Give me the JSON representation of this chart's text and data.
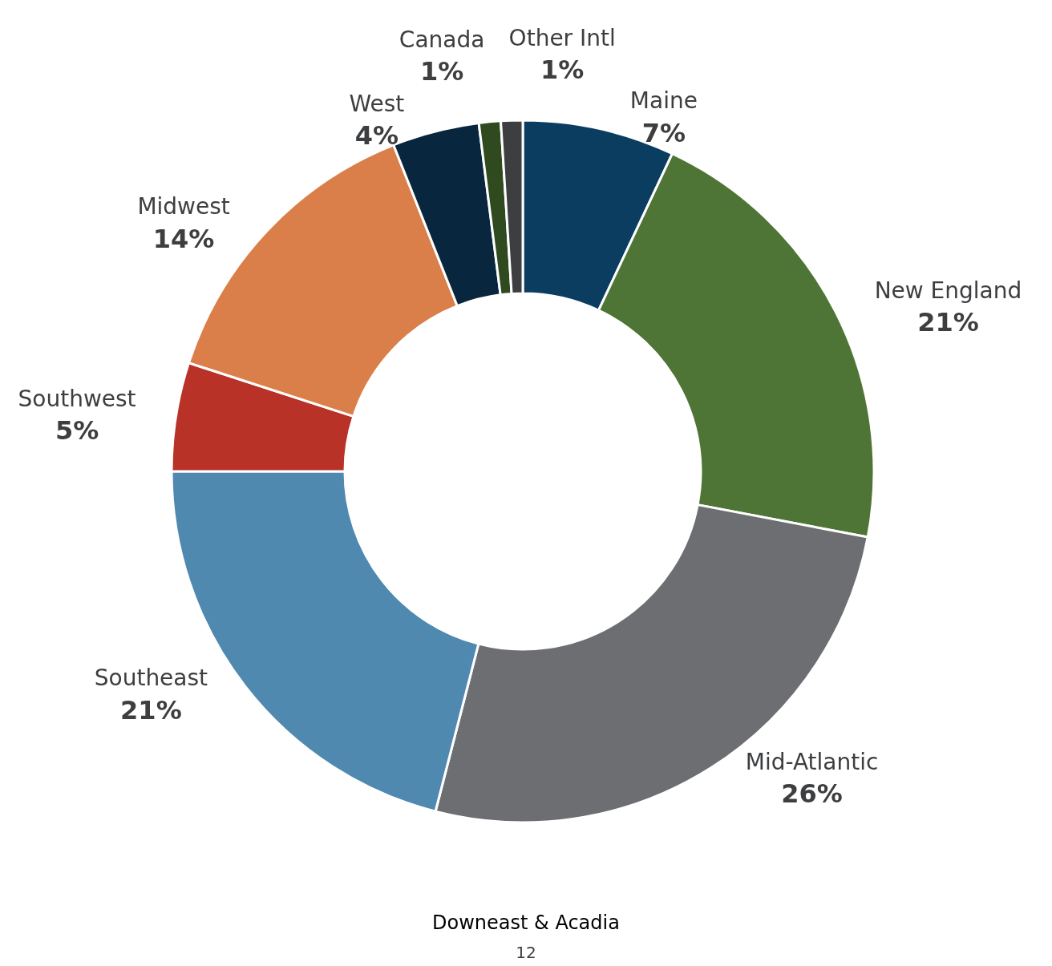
{
  "chart_data": {
    "type": "donut",
    "title": "Downeast & Acadia",
    "categories": [
      "Maine",
      "New England",
      "Mid-Atlantic",
      "Southeast",
      "Southwest",
      "Midwest",
      "West",
      "Canada",
      "Other Intl"
    ],
    "values": [
      7,
      21,
      26,
      21,
      5,
      14,
      4,
      1,
      1
    ],
    "colors": [
      "#0b3d61",
      "#4e7535",
      "#6d6e72",
      "#5089b0",
      "#b83228",
      "#db7f4a",
      "#08263d",
      "#2e4a1e",
      "#3d3e40"
    ],
    "value_labels": [
      "7%",
      "21%",
      "26%",
      "21%",
      "5%",
      "14%",
      "4%",
      "1%",
      "1%"
    ],
    "legend": false,
    "annotations": [
      "12"
    ]
  }
}
